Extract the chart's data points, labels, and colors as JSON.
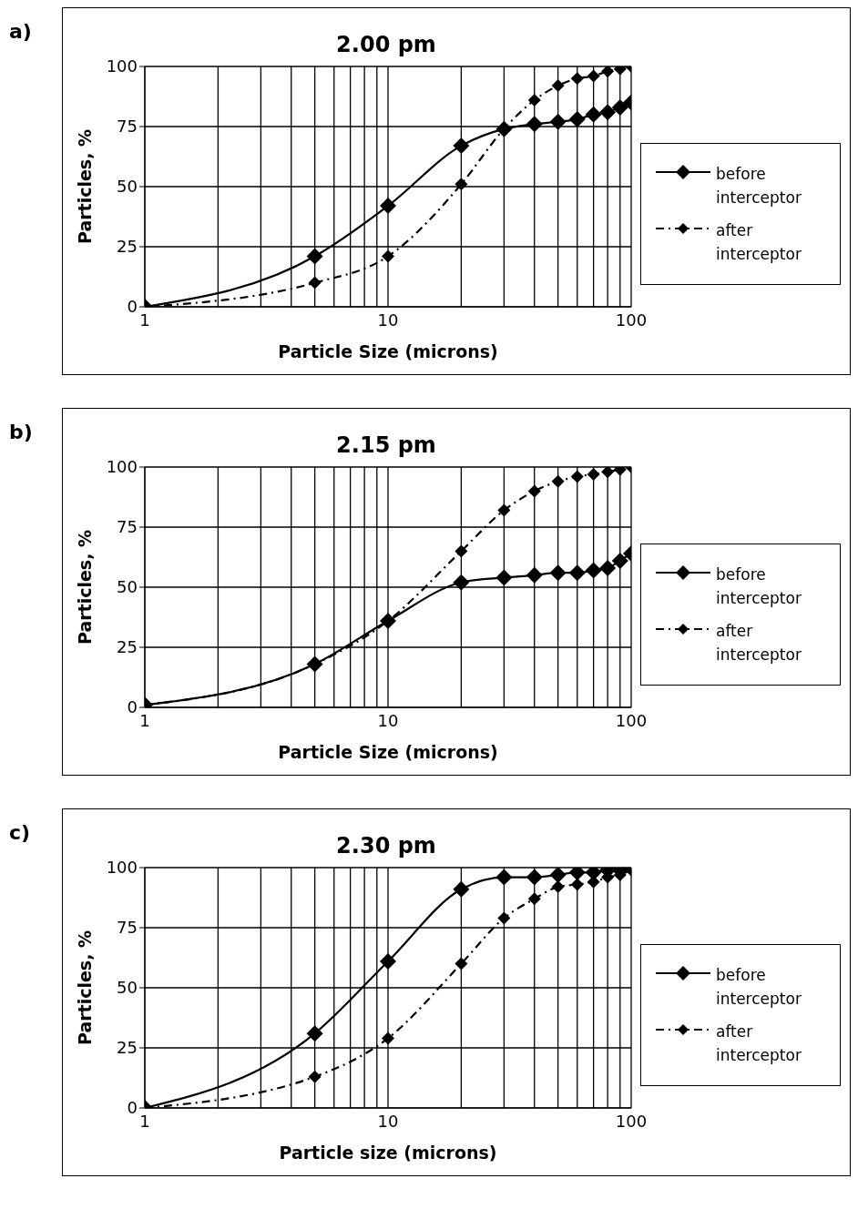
{
  "chart_data": [
    {
      "type": "line",
      "title": "2.00 pm",
      "annotations": [
        "a)"
      ],
      "xlabel": "Particle Size (microns)",
      "ylabel": "Particles, %",
      "log": "x",
      "grid": true,
      "legend": "right",
      "marker": "diamond",
      "x": [
        1,
        5,
        10,
        20,
        30,
        40,
        50,
        60,
        70,
        80,
        90,
        100
      ],
      "xlim": [
        1,
        100
      ],
      "xticks": [
        1,
        {
          "value": 2,
          "label": null
        },
        {
          "value": 3,
          "label": null
        },
        {
          "value": 4,
          "label": null
        },
        {
          "value": 5,
          "label": null
        },
        {
          "value": 6,
          "label": null
        },
        {
          "value": 7,
          "label": null
        },
        {
          "value": 8,
          "label": null
        },
        {
          "value": 9,
          "label": null
        },
        10,
        {
          "value": 20,
          "label": null
        },
        {
          "value": 30,
          "label": null
        },
        {
          "value": 40,
          "label": null
        },
        {
          "value": 50,
          "label": null
        },
        {
          "value": 60,
          "label": null
        },
        {
          "value": 70,
          "label": null
        },
        {
          "value": 80,
          "label": null
        },
        {
          "value": 90,
          "label": null
        },
        100
      ],
      "ylim": [
        0,
        100
      ],
      "yticks": [
        0,
        25,
        50,
        75,
        100
      ],
      "series": [
        {
          "name": "before interceptor",
          "color": "#000000",
          "line_style": "solid",
          "values": [
            0,
            21,
            42,
            67,
            74,
            76,
            77,
            78,
            80,
            81,
            83,
            85
          ]
        },
        {
          "name": "after interceptor",
          "color": "#000000",
          "line_style": "dashed",
          "values": [
            0,
            10,
            21,
            51,
            74,
            86,
            92,
            95,
            96,
            98,
            99,
            100
          ]
        }
      ]
    },
    {
      "type": "line",
      "title": "2.15 pm",
      "annotations": [
        "b)"
      ],
      "xlabel": "Particle Size (microns)",
      "ylabel": "Particles, %",
      "log": "x",
      "grid": true,
      "legend": "right",
      "marker": "diamond",
      "x": [
        1,
        5,
        10,
        20,
        30,
        40,
        50,
        60,
        70,
        80,
        90,
        100
      ],
      "xlim": [
        1,
        100
      ],
      "xticks": [
        1,
        {
          "value": 2,
          "label": null
        },
        {
          "value": 3,
          "label": null
        },
        {
          "value": 4,
          "label": null
        },
        {
          "value": 5,
          "label": null
        },
        {
          "value": 6,
          "label": null
        },
        {
          "value": 7,
          "label": null
        },
        {
          "value": 8,
          "label": null
        },
        {
          "value": 9,
          "label": null
        },
        10,
        {
          "value": 20,
          "label": null
        },
        {
          "value": 30,
          "label": null
        },
        {
          "value": 40,
          "label": null
        },
        {
          "value": 50,
          "label": null
        },
        {
          "value": 60,
          "label": null
        },
        {
          "value": 70,
          "label": null
        },
        {
          "value": 80,
          "label": null
        },
        {
          "value": 90,
          "label": null
        },
        100
      ],
      "ylim": [
        0,
        100
      ],
      "yticks": [
        0,
        25,
        50,
        75,
        100
      ],
      "series": [
        {
          "name": "before interceptor",
          "color": "#000000",
          "line_style": "solid",
          "values": [
            1,
            18,
            36,
            52,
            54,
            55,
            56,
            56,
            57,
            58,
            61,
            64
          ]
        },
        {
          "name": "after interceptor",
          "color": "#000000",
          "line_style": "dashed",
          "values": [
            1,
            18,
            36,
            65,
            82,
            90,
            94,
            96,
            97,
            98,
            99,
            100
          ]
        }
      ]
    },
    {
      "type": "line",
      "title": "2.30 pm",
      "annotations": [
        "c)"
      ],
      "xlabel": "Particle size (microns)",
      "ylabel": "Particles, %",
      "log": "x",
      "grid": true,
      "legend": "right",
      "marker": "diamond",
      "x": [
        1,
        5,
        10,
        20,
        30,
        40,
        50,
        60,
        70,
        80,
        90,
        100
      ],
      "xlim": [
        1,
        100
      ],
      "xticks": [
        1,
        {
          "value": 2,
          "label": null
        },
        {
          "value": 3,
          "label": null
        },
        {
          "value": 4,
          "label": null
        },
        {
          "value": 5,
          "label": null
        },
        {
          "value": 6,
          "label": null
        },
        {
          "value": 7,
          "label": null
        },
        {
          "value": 8,
          "label": null
        },
        {
          "value": 9,
          "label": null
        },
        10,
        {
          "value": 20,
          "label": null
        },
        {
          "value": 30,
          "label": null
        },
        {
          "value": 40,
          "label": null
        },
        {
          "value": 50,
          "label": null
        },
        {
          "value": 60,
          "label": null
        },
        {
          "value": 70,
          "label": null
        },
        {
          "value": 80,
          "label": null
        },
        {
          "value": 90,
          "label": null
        },
        100
      ],
      "ylim": [
        0,
        100
      ],
      "yticks": [
        0,
        25,
        50,
        75,
        100
      ],
      "series": [
        {
          "name": "before interceptor",
          "color": "#000000",
          "line_style": "solid",
          "values": [
            0,
            31,
            61,
            91,
            96,
            96,
            97,
            98,
            98,
            99,
            99,
            100
          ]
        },
        {
          "name": "after interceptor",
          "color": "#000000",
          "line_style": "dashed",
          "values": [
            0,
            13,
            29,
            60,
            79,
            87,
            92,
            93,
            94,
            96,
            97,
            99
          ]
        }
      ]
    }
  ]
}
